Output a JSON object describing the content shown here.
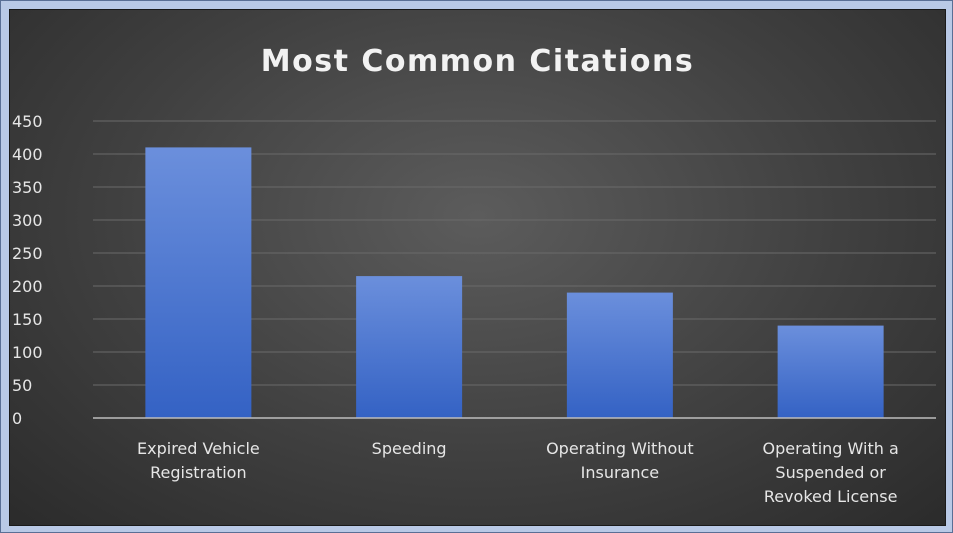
{
  "chart_data": {
    "type": "bar",
    "title": "Most Common Citations",
    "categories": [
      [
        "Expired Vehicle",
        "Registration"
      ],
      [
        "Speeding"
      ],
      [
        "Operating Without",
        "Insurance"
      ],
      [
        "Operating With a",
        "Suspended or",
        "Revoked License"
      ]
    ],
    "values": [
      410,
      215,
      190,
      140
    ],
    "ylim": [
      0,
      450
    ],
    "yticks": [
      0,
      50,
      100,
      150,
      200,
      250,
      300,
      350,
      400,
      450
    ],
    "grid": true,
    "bar_color": "#4f7fd6",
    "xlabel": "",
    "ylabel": ""
  }
}
